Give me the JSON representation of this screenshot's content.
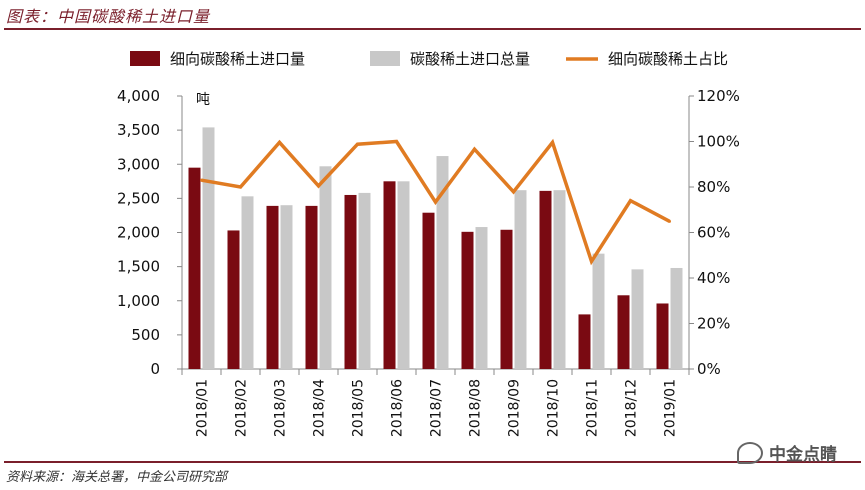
{
  "header": {
    "title": "图表：中国碳酸稀土进口量"
  },
  "footer": {
    "source": "资料来源：海关总署，中金公司研究部",
    "watermark": "中金点睛"
  },
  "colors": {
    "series1": "#7a0a12",
    "series2": "#c8c8c8",
    "series3": "#e07b22",
    "rule": "#7a1f2b"
  },
  "chart_data": {
    "type": "bar",
    "categories": [
      "2018/01",
      "2018/02",
      "2018/03",
      "2018/04",
      "2018/05",
      "2018/06",
      "2018/07",
      "2018/08",
      "2018/09",
      "2018/10",
      "2018/11",
      "2018/12",
      "2019/01"
    ],
    "series": [
      {
        "name": "细向碳酸稀土进口量",
        "type": "bar",
        "axis": "left",
        "values": [
          2950,
          2030,
          2390,
          2390,
          2550,
          2750,
          2290,
          2010,
          2040,
          2610,
          800,
          1080,
          960
        ]
      },
      {
        "name": "碳酸稀土进口总量",
        "type": "bar",
        "axis": "left",
        "values": [
          3540,
          2530,
          2400,
          2970,
          2580,
          2750,
          3120,
          2080,
          2620,
          2620,
          1690,
          1460,
          1480
        ]
      },
      {
        "name": "细向碳酸稀土占比",
        "type": "line",
        "axis": "right",
        "values": [
          83,
          80,
          99.6,
          80.5,
          98.8,
          100,
          73.4,
          96.6,
          77.9,
          99.6,
          47.3,
          74,
          64.9
        ]
      }
    ],
    "ylim_left": [
      0,
      4000
    ],
    "ylim_right": [
      0,
      120
    ],
    "left_ticks": [
      "0",
      "500",
      "1,000",
      "1,500",
      "2,000",
      "2,500",
      "3,000",
      "3,500",
      "4,000"
    ],
    "right_ticks": [
      "0%",
      "20%",
      "40%",
      "60%",
      "80%",
      "100%",
      "120%"
    ],
    "left_unit": "吨",
    "legend_position": "top",
    "grid": false
  }
}
